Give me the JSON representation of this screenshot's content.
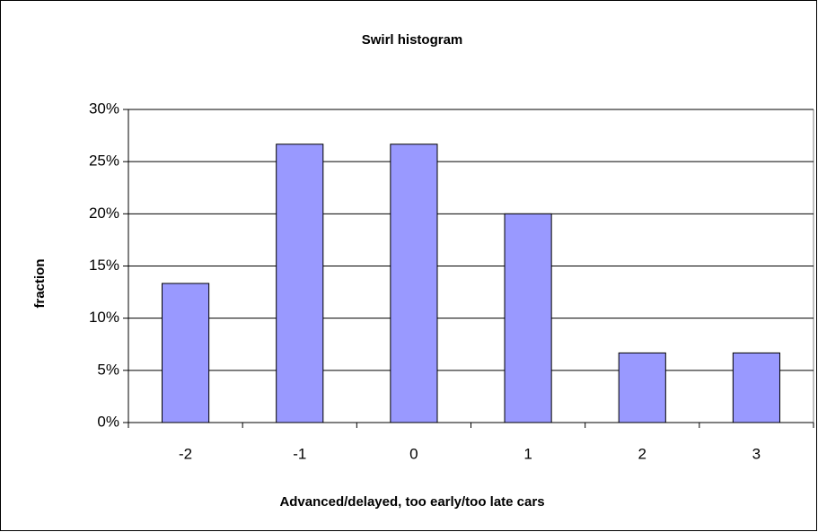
{
  "chart_data": {
    "type": "bar",
    "title": "Swirl histogram",
    "x_label": "Advanced/delayed, too early/too late cars",
    "y_label": "fraction",
    "categories": [
      "-2",
      "-1",
      "0",
      "1",
      "2",
      "3"
    ],
    "values": [
      13.33,
      26.67,
      26.67,
      20,
      6.67,
      6.67
    ],
    "color": "#9999ff",
    "ylim": [
      0,
      30
    ],
    "yticks": [
      {
        "value": 0,
        "label": "0%"
      },
      {
        "value": 5,
        "label": "5%"
      },
      {
        "value": 10,
        "label": "10%"
      },
      {
        "value": 15,
        "label": "15%"
      },
      {
        "value": 20,
        "label": "20%"
      },
      {
        "value": 25,
        "label": "25%"
      },
      {
        "value": 30,
        "label": "30%"
      }
    ],
    "grid": true
  }
}
